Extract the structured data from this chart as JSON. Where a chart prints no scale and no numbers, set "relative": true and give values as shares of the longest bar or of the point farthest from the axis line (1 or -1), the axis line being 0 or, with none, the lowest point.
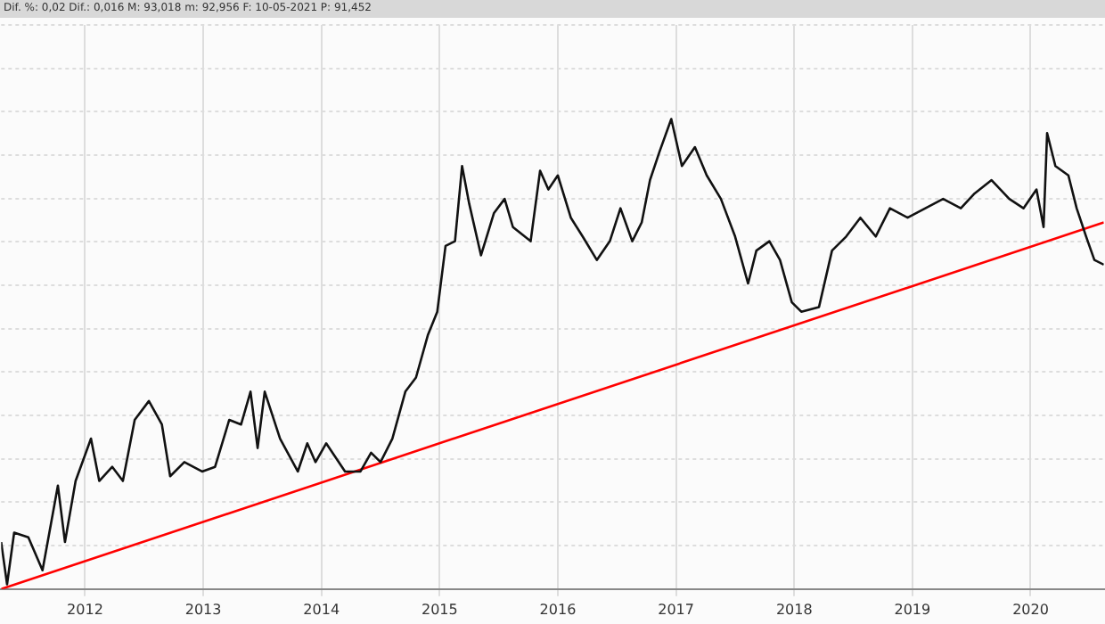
{
  "chart_data": {
    "type": "line",
    "subtitle": "Dif. %: 0,02 Dif.: 0,016 M: 93,018 m: 92,956 F: 10-05-2021 P: 91,452",
    "relative": true,
    "grid": true,
    "legend": false,
    "marker": "none",
    "line_style": "solid",
    "xlim": [
      2011.29,
      2020.62
    ],
    "xticks": [
      2012,
      2013,
      2014,
      2015,
      2016,
      2017,
      2018,
      2019,
      2020
    ],
    "series": [
      {
        "color": "#111111",
        "x": [
          2011.29,
          2011.34,
          2011.4,
          2011.52,
          2011.64,
          2011.77,
          2011.83,
          2011.92,
          2012.05,
          2012.12,
          2012.23,
          2012.32,
          2012.42,
          2012.54,
          2012.65,
          2012.72,
          2012.84,
          2012.99,
          2013.1,
          2013.22,
          2013.32,
          2013.4,
          2013.46,
          2013.52,
          2013.65,
          2013.8,
          2013.88,
          2013.95,
          2014.04,
          2014.2,
          2014.33,
          2014.42,
          2014.5,
          2014.6,
          2014.71,
          2014.8,
          2014.9,
          2014.98,
          2015.05,
          2015.13,
          2015.19,
          2015.25,
          2015.35,
          2015.46,
          2015.55,
          2015.62,
          2015.77,
          2015.85,
          2015.92,
          2016.0,
          2016.11,
          2016.21,
          2016.33,
          2016.44,
          2016.53,
          2016.63,
          2016.71,
          2016.78,
          2016.86,
          2016.96,
          2017.05,
          2017.16,
          2017.26,
          2017.38,
          2017.5,
          2017.61,
          2017.68,
          2017.79,
          2017.88,
          2017.98,
          2018.06,
          2018.21,
          2018.32,
          2018.44,
          2018.56,
          2018.69,
          2018.81,
          2018.96,
          2019.11,
          2019.26,
          2019.41,
          2019.52,
          2019.67,
          2019.82,
          2019.94,
          2020.05,
          2020.11,
          2020.14,
          2020.21,
          2020.32,
          2020.39,
          2020.47,
          2020.54,
          2020.62
        ],
        "values": [
          0.1,
          0.01,
          0.12,
          0.11,
          0.04,
          0.22,
          0.1,
          0.23,
          0.32,
          0.23,
          0.26,
          0.23,
          0.36,
          0.4,
          0.35,
          0.24,
          0.27,
          0.25,
          0.26,
          0.36,
          0.35,
          0.42,
          0.3,
          0.42,
          0.32,
          0.25,
          0.31,
          0.27,
          0.31,
          0.25,
          0.25,
          0.29,
          0.27,
          0.32,
          0.42,
          0.45,
          0.54,
          0.59,
          0.73,
          0.74,
          0.9,
          0.82,
          0.71,
          0.8,
          0.83,
          0.77,
          0.74,
          0.89,
          0.85,
          0.88,
          0.79,
          0.75,
          0.7,
          0.74,
          0.81,
          0.74,
          0.78,
          0.87,
          0.93,
          1.0,
          0.9,
          0.94,
          0.88,
          0.83,
          0.75,
          0.65,
          0.72,
          0.74,
          0.7,
          0.61,
          0.59,
          0.6,
          0.72,
          0.75,
          0.79,
          0.75,
          0.81,
          0.79,
          0.81,
          0.83,
          0.81,
          0.84,
          0.87,
          0.83,
          0.81,
          0.85,
          0.77,
          0.97,
          0.9,
          0.88,
          0.81,
          0.75,
          0.7,
          0.69
        ]
      },
      {
        "color": "#ff0000",
        "x": [
          2011.29,
          2020.62
        ],
        "values": [
          0,
          0.78
        ]
      }
    ]
  }
}
